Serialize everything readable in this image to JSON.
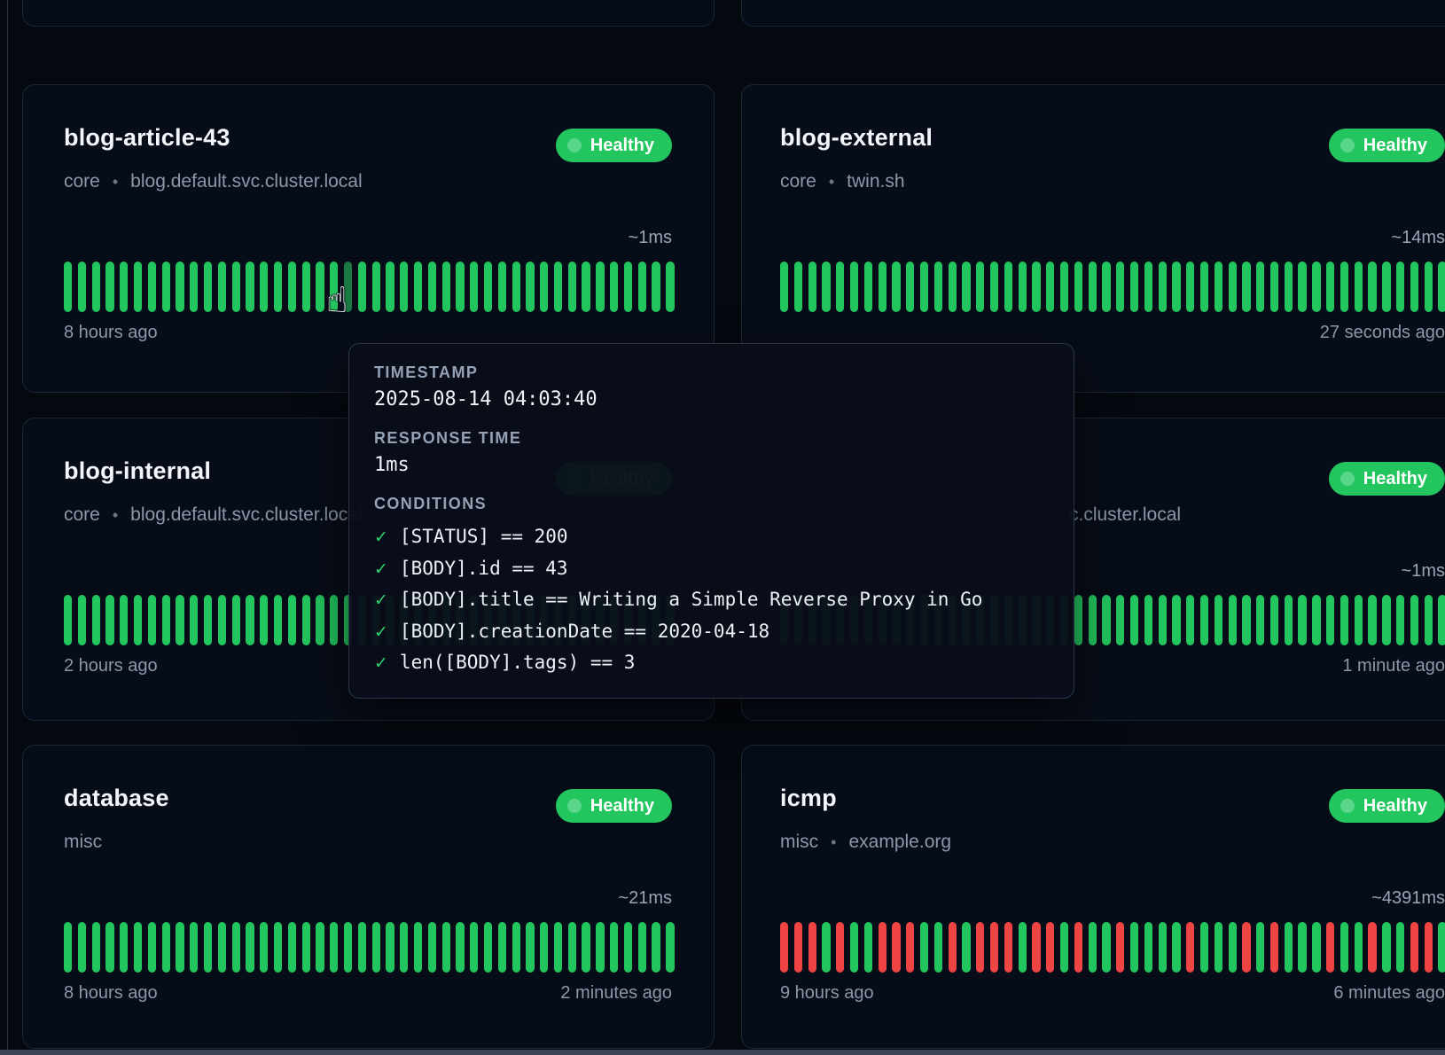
{
  "ui": {
    "bullet": "•",
    "hand_cursor_glyph": "☝"
  },
  "colors": {
    "bar_green": "#23c55e",
    "bar_red": "#ef4444",
    "bar_hover_green": "#1b7a42",
    "badge_green": "#22c55e",
    "check_green": "#2fd06b"
  },
  "cards": [
    {
      "title": "blog-article-43",
      "group": "core",
      "target": "blog.default.svc.cluster.local",
      "status": "Healthy",
      "response_time": "~1ms",
      "time_left": "8 hours ago",
      "time_right": "",
      "pattern": "GGGGGGGGGGGGGGGGGGGGHGGGGGGGGGGGGGGGGGGGGGGG"
    },
    {
      "title": "blog-external",
      "group": "core",
      "target": "twin.sh",
      "status": "Healthy",
      "response_time": "~14ms",
      "time_left": "",
      "time_right": "27 seconds ago",
      "pattern": "GGGGGGGGGGGGGGGGGGGGGGGGGGGGGGGGGGGGGGGGGGGGGGGGG"
    },
    {
      "title": "blog-internal",
      "group": "core",
      "target": "blog.default.svc.cluster.local",
      "status": "Healthy",
      "response_time": "",
      "time_left": "2 hours ago",
      "time_right": "",
      "pattern": "GGGGGGGGGGGGGGGGGGGGGGGGGGGGGGGGGGGGGGGGGGGG"
    },
    {
      "title": "",
      "group": "",
      "target": "c.cluster.local",
      "status": "Healthy",
      "response_time": "~1ms",
      "time_left": "",
      "time_right": "1 minute ago",
      "pattern": "GGGGGGGGGGGGGGGGGGGGGGGGGGGGGGGGGGGGGGGGGGGGGGGGG"
    },
    {
      "title": "database",
      "group": "misc",
      "target": "",
      "status": "Healthy",
      "response_time": "~21ms",
      "time_left": "8 hours ago",
      "time_right": "2 minutes ago",
      "pattern": "GGGGGGGGGGGGGGGGGGGGGGGGGGGGGGGGGGGGGGGGGGGG"
    },
    {
      "title": "icmp",
      "group": "misc",
      "target": "example.org",
      "status": "Healthy",
      "response_time": "~4391ms",
      "time_left": "9 hours ago",
      "time_right": "6 minutes ago",
      "pattern": "RRRGRGGRRRGGRGRRRGRRGRGGRGGGGRGGGRGRGGGRGGRGGRRGR"
    }
  ],
  "tooltip": {
    "timestamp_label": "TIMESTAMP",
    "timestamp": "2025-08-14 04:03:40",
    "response_label": "RESPONSE TIME",
    "response": "1ms",
    "conditions_label": "CONDITIONS",
    "check_glyph": "✓",
    "conditions": [
      "[STATUS] == 200",
      "[BODY].id == 43",
      "[BODY].title == Writing a Simple Reverse Proxy in Go",
      "[BODY].creationDate == 2020-04-18",
      "len([BODY].tags) == 3"
    ]
  }
}
